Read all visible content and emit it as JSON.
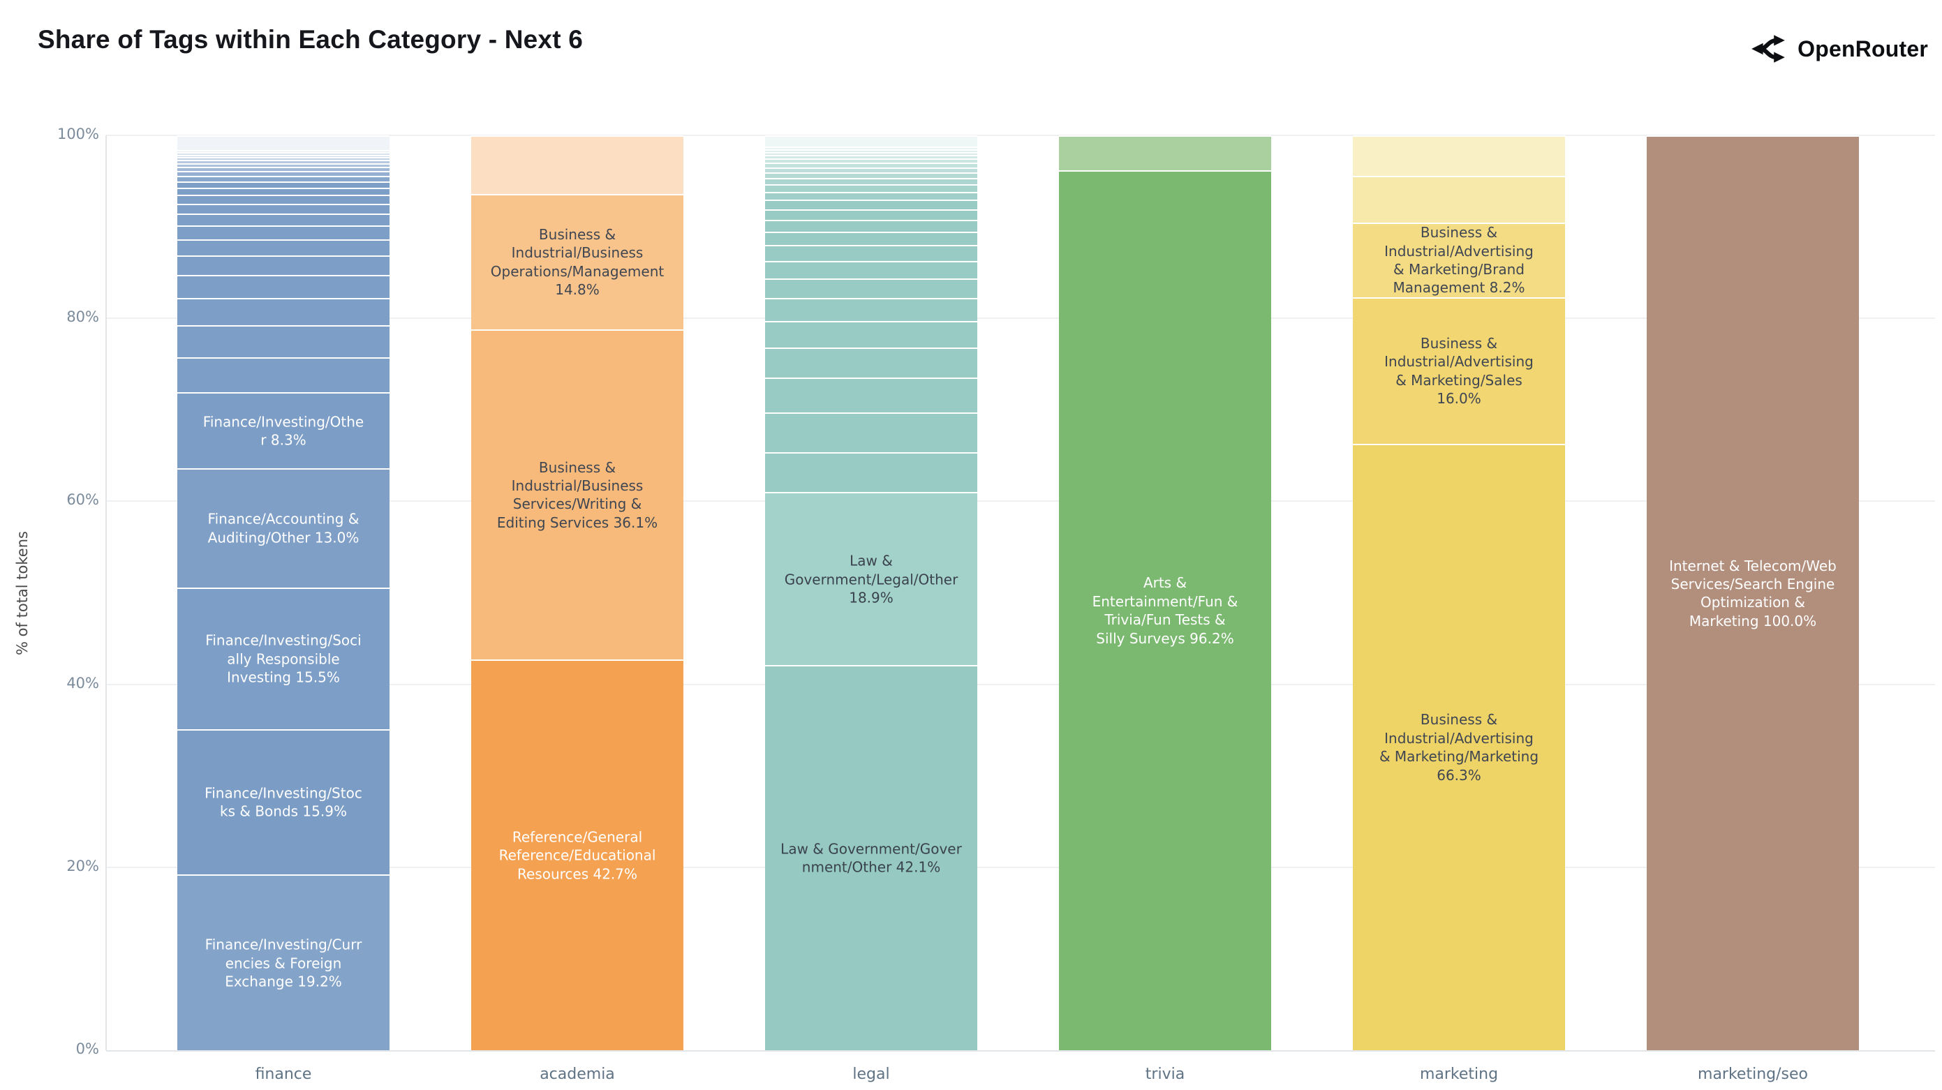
{
  "header": {
    "title": "Share of Tags within Each Category - Next 6",
    "brand": "OpenRouter"
  },
  "axis": {
    "tick_color": "#7b8b9b",
    "grid_color": "#eef0f2",
    "line_color": "#e3e6e9",
    "category_color": "#5f7385",
    "ylabel_color": "#4a4a4a"
  },
  "chart_data": {
    "type": "bar",
    "stacked": true,
    "title": "Share of Tags within Each Category - Next 6",
    "xlabel": "",
    "ylabel": "% of total tokens",
    "ylim": [
      0,
      100
    ],
    "yticks": [
      "0%",
      "20%",
      "40%",
      "60%",
      "80%",
      "100%"
    ],
    "grid": true,
    "legend": false,
    "categories": [
      "finance",
      "academia",
      "legal",
      "trivia",
      "marketing",
      "marketing/seo"
    ],
    "bars": [
      {
        "category": "finance",
        "minor_segments": {
          "values": [
            1.6,
            0.25,
            0.25,
            0.3,
            0.3,
            0.35,
            0.4,
            0.45,
            0.5,
            0.6,
            0.7,
            0.8,
            0.95,
            1.1,
            1.3,
            1.5,
            1.8,
            2.1,
            2.5,
            3.0,
            3.5,
            3.85
          ],
          "colors": [
            "#f0f4f9",
            "#e5ebf4",
            "#d9e3ef",
            "#cedaea",
            "#c2d2e5",
            "#b7c9e0",
            "#abc0db",
            "#a0b8d6",
            "#94afd1",
            "#89a7cc",
            "#7d9ec7",
            "#7d9ec7",
            "#7d9ec7",
            "#7d9ec7",
            "#7d9ec7",
            "#7d9ec7",
            "#7d9ec7",
            "#7d9ec7",
            "#7d9ec7",
            "#7d9ec7",
            "#7d9ec7",
            "#7d9ec7"
          ]
        },
        "segments": [
          {
            "tag": "Finance/Investing/Other",
            "pct": 8.3,
            "lines": [
              "Finance/Investing/Othe",
              "r 8.3%"
            ],
            "color": "#7c9dc6",
            "text_color": "#ffffff"
          },
          {
            "tag": "Finance/Accounting & Auditing/Other",
            "pct": 13.0,
            "lines": [
              "Finance/Accounting &",
              "Auditing/Other 13.0%"
            ],
            "color": "#7f9fc7",
            "text_color": "#ffffff"
          },
          {
            "tag": "Finance/Investing/Socially Responsible Investing",
            "pct": 15.5,
            "lines": [
              "Finance/Investing/Soci",
              "ally Responsible",
              "Investing 15.5%"
            ],
            "color": "#7d9ec6",
            "text_color": "#ffffff"
          },
          {
            "tag": "Finance/Investing/Stocks & Bonds",
            "pct": 15.9,
            "lines": [
              "Finance/Investing/Stoc",
              "ks & Bonds 15.9%"
            ],
            "color": "#7b9cc5",
            "text_color": "#ffffff"
          },
          {
            "tag": "Finance/Investing/Currencies & Foreign Exchange",
            "pct": 19.2,
            "lines": [
              "Finance/Investing/Curr",
              "encies & Foreign",
              "Exchange 19.2%"
            ],
            "color": "#84a3c9",
            "text_color": "#ffffff"
          }
        ]
      },
      {
        "category": "academia",
        "minor_segments": {
          "values": [
            6.4
          ],
          "colors": [
            "#fcdfc2"
          ]
        },
        "segments": [
          {
            "tag": "Business & Industrial/Business Operations/Management",
            "pct": 14.8,
            "lines": [
              "Business &",
              "Industrial/Business",
              "Operations/Management",
              "14.8%"
            ],
            "color": "#f9c48b",
            "text_color": "#3f4652"
          },
          {
            "tag": "Business & Industrial/Business Services/Writing & Editing Services",
            "pct": 36.1,
            "lines": [
              "Business &",
              "Industrial/Business",
              "Services/Writing &",
              "Editing Services 36.1%"
            ],
            "color": "#f7ba7b",
            "text_color": "#3f4652"
          },
          {
            "tag": "Reference/General Reference/Educational Resources",
            "pct": 42.7,
            "lines": [
              "Reference/General",
              "Reference/Educational",
              "Resources 42.7%"
            ],
            "color": "#f5a152",
            "text_color": "#ffffff"
          }
        ]
      },
      {
        "category": "legal",
        "minor_segments": {
          "values": [
            1.2,
            0.3,
            0.3,
            0.35,
            0.4,
            0.45,
            0.5,
            0.55,
            0.6,
            0.7,
            0.8,
            0.9,
            1.0,
            1.15,
            1.3,
            1.5,
            1.7,
            1.9,
            2.2,
            2.5,
            2.9,
            3.3,
            3.8,
            4.3,
            4.4
          ],
          "colors": [
            "#eff7f6",
            "#e8f3f2",
            "#e0f0ee",
            "#d9ecea",
            "#d2e8e5",
            "#cbe5e1",
            "#c3e1dd",
            "#bcddd9",
            "#b5dad5",
            "#aed6d0",
            "#a6d2cc",
            "#9fcfc8",
            "#98cbc4",
            "#98cbc4",
            "#98cbc4",
            "#98cbc4",
            "#98cbc4",
            "#98cbc4",
            "#98cbc4",
            "#98cbc4",
            "#98cbc4",
            "#98cbc4",
            "#98cbc4",
            "#98cbc4",
            "#98cbc4"
          ]
        },
        "segments": [
          {
            "tag": "Law & Government/Legal/Other",
            "pct": 18.9,
            "lines": [
              "Law &",
              "Government/Legal/Other",
              "18.9%"
            ],
            "color": "#a3d2cb",
            "text_color": "#3a424d"
          },
          {
            "tag": "Law & Government/Government/Other",
            "pct": 42.1,
            "lines": [
              "Law & Government/Gover",
              "nment/Other 42.1%"
            ],
            "color": "#95c9c2",
            "text_color": "#3a424d"
          }
        ]
      },
      {
        "category": "trivia",
        "minor_segments": {
          "values": [
            3.8
          ],
          "colors": [
            "#a9d09e"
          ]
        },
        "segments": [
          {
            "tag": "Arts & Entertainment/Fun & Trivia/Fun Tests & Silly Surveys",
            "pct": 96.2,
            "lines": [
              "Arts &",
              "Entertainment/Fun &",
              "Trivia/Fun Tests &",
              "Silly Surveys 96.2%"
            ],
            "color": "#7bb870",
            "text_color": "#ffffff"
          }
        ]
      },
      {
        "category": "marketing",
        "minor_segments": {
          "values": [
            4.4,
            5.1
          ],
          "colors": [
            "#faf0c6",
            "#f7e9aa"
          ]
        },
        "segments": [
          {
            "tag": "Business & Industrial/Advertising & Marketing/Brand Management",
            "pct": 8.2,
            "lines": [
              "Business &",
              "Industrial/Advertising",
              "& Marketing/Brand",
              "Management 8.2%"
            ],
            "color": "#f4dc85",
            "text_color": "#3f4652"
          },
          {
            "tag": "Business & Industrial/Advertising & Marketing/Sales",
            "pct": 16.0,
            "lines": [
              "Business &",
              "Industrial/Advertising",
              "& Marketing/Sales",
              "16.0%"
            ],
            "color": "#f1d671",
            "text_color": "#3f4652"
          },
          {
            "tag": "Business & Industrial/Advertising & Marketing/Marketing",
            "pct": 66.3,
            "lines": [
              "Business &",
              "Industrial/Advertising",
              "& Marketing/Marketing",
              "66.3%"
            ],
            "color": "#eed367",
            "text_color": "#3f4652"
          }
        ]
      },
      {
        "category": "marketing/seo",
        "minor_segments": {
          "values": [],
          "colors": []
        },
        "segments": [
          {
            "tag": "Internet & Telecom/Web Services/Search Engine Optimization & Marketing",
            "pct": 100.0,
            "lines": [
              "Internet & Telecom/Web",
              "Services/Search Engine",
              "Optimization &",
              "Marketing 100.0%"
            ],
            "color": "#b28e7d",
            "text_color": "#ffffff"
          }
        ]
      }
    ]
  }
}
